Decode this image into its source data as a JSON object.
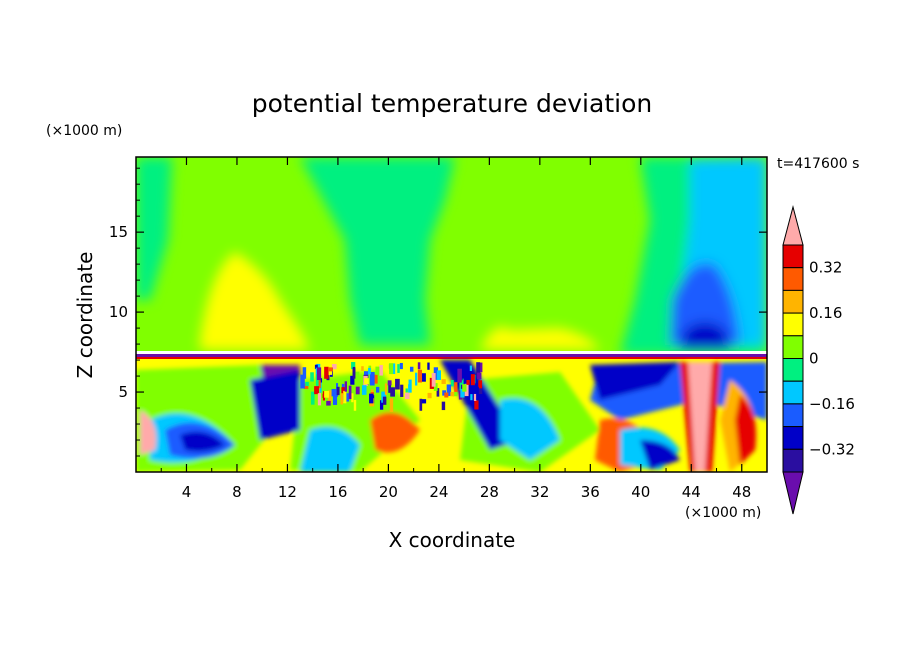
{
  "chart_data": {
    "type": "heatmap",
    "title": "potential temperature deviation",
    "xlabel": "X coordinate",
    "ylabel": "Z coordinate",
    "x_unit": "(×1000 m)",
    "y_unit": "(×1000 m)",
    "time_label": "t=417600 s",
    "xlim": [
      0,
      50
    ],
    "ylim": [
      0,
      19.7
    ],
    "x_ticks": [
      4,
      8,
      12,
      16,
      20,
      24,
      28,
      32,
      36,
      40,
      44,
      48
    ],
    "y_ticks": [
      5,
      10,
      15
    ],
    "colorbar": {
      "levels": [
        -0.4,
        -0.32,
        -0.24,
        -0.16,
        -0.08,
        0,
        0.08,
        0.16,
        0.24,
        0.32,
        0.4
      ],
      "labeled_levels": [
        0.32,
        0.16,
        0,
        -0.16,
        -0.32
      ],
      "colors": [
        "#6a0dad",
        "#2a0ea0",
        "#0000c8",
        "#1a5cff",
        "#00c8ff",
        "#00f080",
        "#80ff00",
        "#ffff00",
        "#ffb400",
        "#ff5a00",
        "#e60000",
        "#ffaaaa"
      ]
    }
  }
}
